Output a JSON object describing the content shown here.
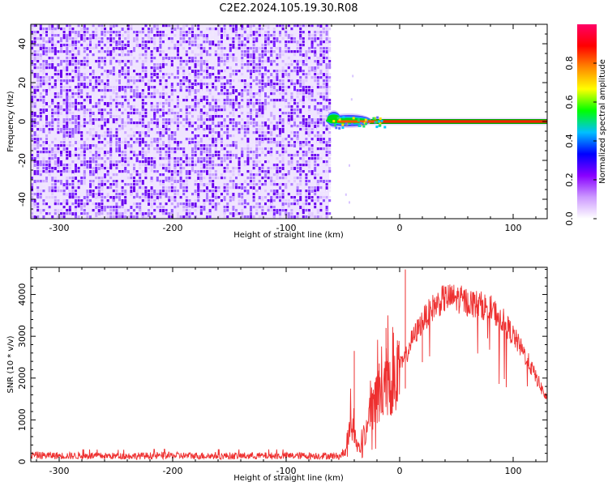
{
  "title": "C2E2.2024.105.19.30.R08",
  "chart_data": [
    {
      "type": "heatmap",
      "xlabel": "Height of straight line (km)",
      "ylabel": "Frequency (Hz)",
      "xlim": [
        -325,
        130
      ],
      "ylim": [
        -50,
        50
      ],
      "xticks": [
        -300,
        -200,
        -100,
        0,
        100
      ],
      "yticks": [
        -40,
        -20,
        0,
        20,
        40
      ],
      "noise_region_x": [
        -325,
        -62
      ],
      "signal_line": {
        "x_start": -62,
        "x_end": 130,
        "frequency_hz": 0
      },
      "colorbar": {
        "label": "Normalized spectral amplitude",
        "ticks": [
          0.0,
          0.2,
          0.4,
          0.6,
          0.8
        ],
        "range": [
          0,
          1
        ],
        "colors": [
          "#ffffff",
          "#cc99ff",
          "#8800ff",
          "#0000ff",
          "#00bfff",
          "#00ff00",
          "#ffff00",
          "#ff8800",
          "#ff0000",
          "#ff0066"
        ]
      },
      "colors": {
        "noise": "#7a00ff",
        "signal": "#ff2200",
        "signal_edge": "#00aa00"
      }
    },
    {
      "type": "line",
      "xlabel": "Height of straight line (km)",
      "ylabel": "SNR (10 * v/v)",
      "xlim": [
        -325,
        130
      ],
      "ylim": [
        0,
        4650
      ],
      "xticks": [
        -300,
        -200,
        -100,
        0,
        100
      ],
      "yticks": [
        0,
        1000,
        2000,
        3000,
        4000
      ],
      "series": [
        {
          "color": "#ee3030",
          "envelope": {
            "x": [
              -325,
              -300,
              -250,
              -200,
              -150,
              -100,
              -70,
              -52,
              -48,
              -44,
              -41,
              -38,
              -35,
              -30,
              -25,
              -20,
              -15,
              -10,
              -5,
              0,
              5,
              10,
              20,
              30,
              40,
              50,
              60,
              70,
              80,
              90,
              100,
              110,
              120,
              130
            ],
            "y": [
              170,
              160,
              150,
              160,
              155,
              155,
              160,
              150,
              250,
              950,
              900,
              500,
              300,
              800,
              1400,
              1600,
              1900,
              2000,
              2200,
              2300,
              2500,
              2900,
              3400,
              3750,
              3950,
              3950,
              3850,
              3800,
              3700,
              3450,
              3050,
              2600,
              2050,
              1500
            ]
          }
        }
      ]
    }
  ]
}
